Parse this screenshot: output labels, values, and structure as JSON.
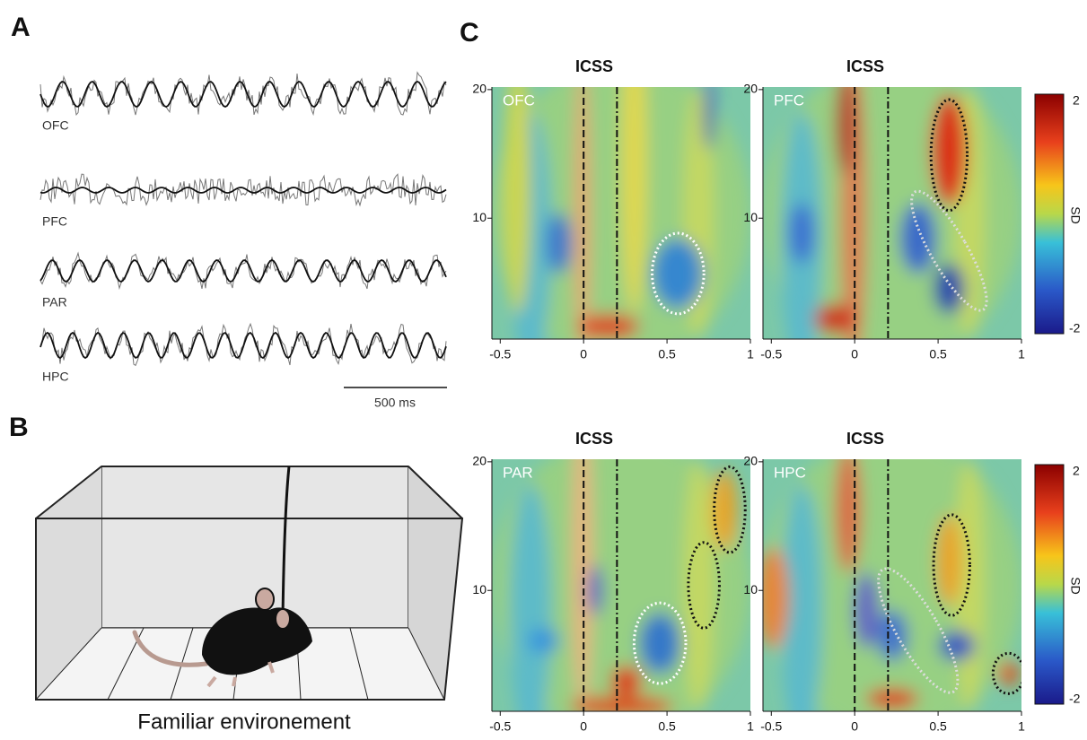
{
  "panels": {
    "A": {
      "label": "A",
      "traces": [
        "OFC",
        "PFC",
        "PAR",
        "HPC"
      ],
      "scale_bar": "500 ms"
    },
    "B": {
      "label": "B",
      "caption": "Familiar environement"
    },
    "C": {
      "label": "C",
      "plots": [
        {
          "title": "ICSS",
          "region": "OFC"
        },
        {
          "title": "ICSS",
          "region": "PFC"
        },
        {
          "title": "ICSS",
          "region": "PAR"
        },
        {
          "title": "ICSS",
          "region": "HPC"
        }
      ],
      "xlim": [
        -0.55,
        1
      ],
      "xticks": [
        -0.5,
        0,
        0.5,
        1
      ],
      "ylim": [
        0.6,
        20.2
      ],
      "yticks": [
        10,
        20
      ],
      "colorbar": {
        "label": "SD",
        "ticks": [
          2,
          -2
        ]
      }
    }
  }
}
